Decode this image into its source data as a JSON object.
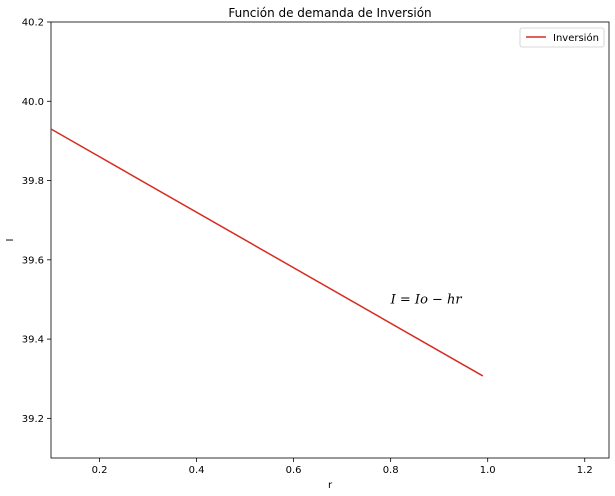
{
  "chart_data": {
    "type": "line",
    "title": "Función de demanda de Inversión",
    "xlabel": "r",
    "ylabel": "I",
    "xlim": [
      0.1,
      1.25
    ],
    "ylim": [
      39.1,
      40.2
    ],
    "xticks": [
      "0.2",
      "0.4",
      "0.6",
      "0.8",
      "1.0",
      "1.2"
    ],
    "yticks": [
      "39.2",
      "39.4",
      "39.6",
      "39.8",
      "40.0",
      "40.2"
    ],
    "series": [
      {
        "name": "Inversión",
        "color": "#d62d20",
        "x": [
          0.1,
          0.99
        ],
        "y": [
          39.93,
          39.307
        ]
      }
    ],
    "annotation": {
      "text": "I = Io − hr",
      "x": 0.8,
      "y": 39.5
    },
    "legend": "top-right",
    "grid": false
  }
}
